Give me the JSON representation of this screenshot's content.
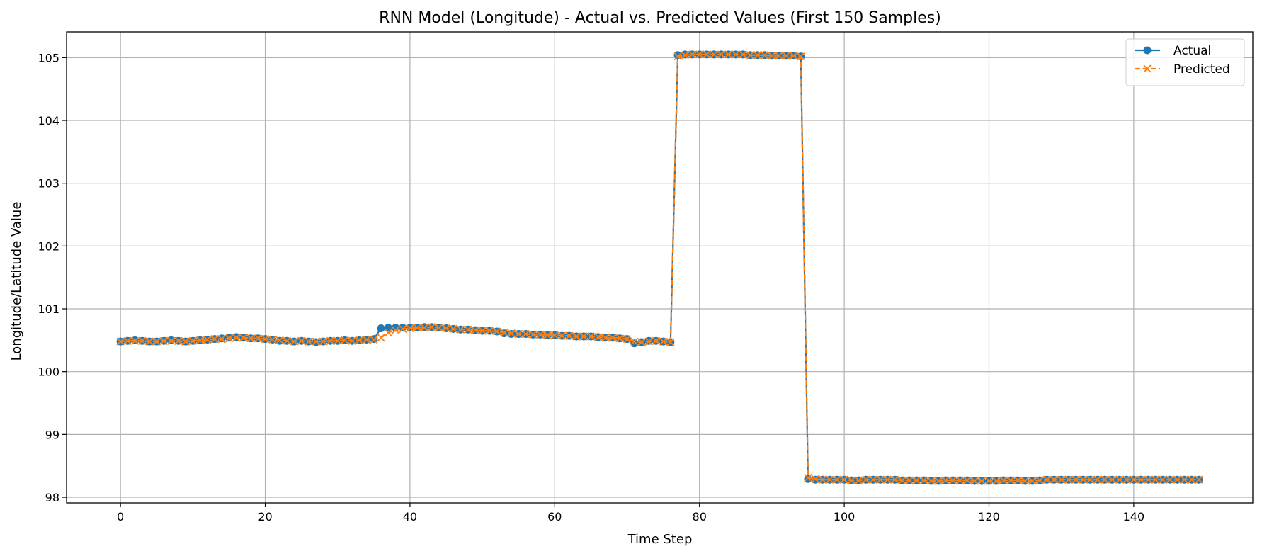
{
  "chart_data": {
    "type": "line",
    "title": "RNN Model (Longitude) - Actual vs. Predicted Values (First 150 Samples)",
    "xlabel": "Time Step",
    "ylabel": "Longitude/Latitude Value",
    "xlim": [
      -7.45,
      156.45
    ],
    "ylim": [
      97.91,
      105.41
    ],
    "xticks": [
      0,
      20,
      40,
      60,
      80,
      100,
      120,
      140
    ],
    "yticks": [
      98,
      99,
      100,
      101,
      102,
      103,
      104,
      105
    ],
    "grid": true,
    "legend_position": "top-right",
    "series": [
      {
        "name": "Actual",
        "color": "#1f77b4",
        "marker": "circle",
        "line_style": "solid",
        "values": [
          100.48,
          100.49,
          100.5,
          100.49,
          100.48,
          100.48,
          100.49,
          100.5,
          100.49,
          100.48,
          100.49,
          100.5,
          100.51,
          100.52,
          100.53,
          100.54,
          100.55,
          100.54,
          100.53,
          100.53,
          100.52,
          100.51,
          100.49,
          100.49,
          100.48,
          100.49,
          100.48,
          100.47,
          100.48,
          100.49,
          100.49,
          100.5,
          100.49,
          100.5,
          100.51,
          100.52,
          100.69,
          100.7,
          100.7,
          100.7,
          100.7,
          100.7,
          100.71,
          100.71,
          100.7,
          100.69,
          100.68,
          100.67,
          100.67,
          100.66,
          100.65,
          100.65,
          100.64,
          100.61,
          100.6,
          100.6,
          100.6,
          100.59,
          100.59,
          100.58,
          100.58,
          100.57,
          100.57,
          100.56,
          100.56,
          100.56,
          100.55,
          100.54,
          100.54,
          100.53,
          100.52,
          100.45,
          100.47,
          100.49,
          100.49,
          100.48,
          100.47,
          105.04,
          105.05,
          105.05,
          105.05,
          105.05,
          105.05,
          105.05,
          105.05,
          105.05,
          105.05,
          105.04,
          105.04,
          105.04,
          105.03,
          105.03,
          105.03,
          105.03,
          105.02,
          98.29,
          98.28,
          98.28,
          98.28,
          98.28,
          98.28,
          98.27,
          98.27,
          98.28,
          98.28,
          98.28,
          98.28,
          98.28,
          98.27,
          98.27,
          98.27,
          98.27,
          98.26,
          98.26,
          98.27,
          98.27,
          98.27,
          98.27,
          98.26,
          98.26,
          98.26,
          98.26,
          98.27,
          98.27,
          98.27,
          98.26,
          98.26,
          98.27,
          98.28,
          98.28,
          98.28,
          98.28,
          98.28,
          98.28,
          98.28,
          98.28,
          98.28,
          98.28,
          98.28,
          98.28,
          98.28,
          98.28,
          98.28,
          98.28,
          98.28,
          98.28,
          98.28,
          98.28,
          98.28,
          98.28
        ]
      },
      {
        "name": "Predicted",
        "color": "#ff7f0e",
        "marker": "x",
        "line_style": "dashed",
        "values": [
          100.48,
          100.49,
          100.49,
          100.49,
          100.48,
          100.48,
          100.49,
          100.49,
          100.49,
          100.48,
          100.49,
          100.5,
          100.51,
          100.52,
          100.52,
          100.53,
          100.54,
          100.54,
          100.53,
          100.53,
          100.52,
          100.51,
          100.5,
          100.49,
          100.48,
          100.49,
          100.48,
          100.48,
          100.48,
          100.49,
          100.49,
          100.5,
          100.49,
          100.5,
          100.51,
          100.51,
          100.54,
          100.62,
          100.66,
          100.68,
          100.69,
          100.7,
          100.7,
          100.71,
          100.7,
          100.69,
          100.68,
          100.67,
          100.67,
          100.66,
          100.65,
          100.65,
          100.64,
          100.62,
          100.61,
          100.6,
          100.6,
          100.59,
          100.59,
          100.58,
          100.58,
          100.57,
          100.57,
          100.56,
          100.56,
          100.56,
          100.55,
          100.54,
          100.54,
          100.53,
          100.52,
          100.48,
          100.47,
          100.48,
          100.49,
          100.48,
          100.47,
          105.02,
          105.04,
          105.05,
          105.05,
          105.05,
          105.05,
          105.05,
          105.05,
          105.05,
          105.05,
          105.04,
          105.04,
          105.04,
          105.03,
          105.03,
          105.03,
          105.03,
          105.02,
          98.31,
          98.29,
          98.28,
          98.28,
          98.28,
          98.28,
          98.27,
          98.27,
          98.28,
          98.28,
          98.28,
          98.28,
          98.28,
          98.27,
          98.27,
          98.27,
          98.27,
          98.26,
          98.26,
          98.27,
          98.27,
          98.27,
          98.27,
          98.26,
          98.26,
          98.26,
          98.26,
          98.27,
          98.27,
          98.27,
          98.26,
          98.26,
          98.27,
          98.28,
          98.28,
          98.28,
          98.28,
          98.28,
          98.28,
          98.28,
          98.28,
          98.28,
          98.28,
          98.28,
          98.28,
          98.28,
          98.28,
          98.28,
          98.28,
          98.28,
          98.28,
          98.28,
          98.28,
          98.28,
          98.28
        ]
      }
    ]
  }
}
